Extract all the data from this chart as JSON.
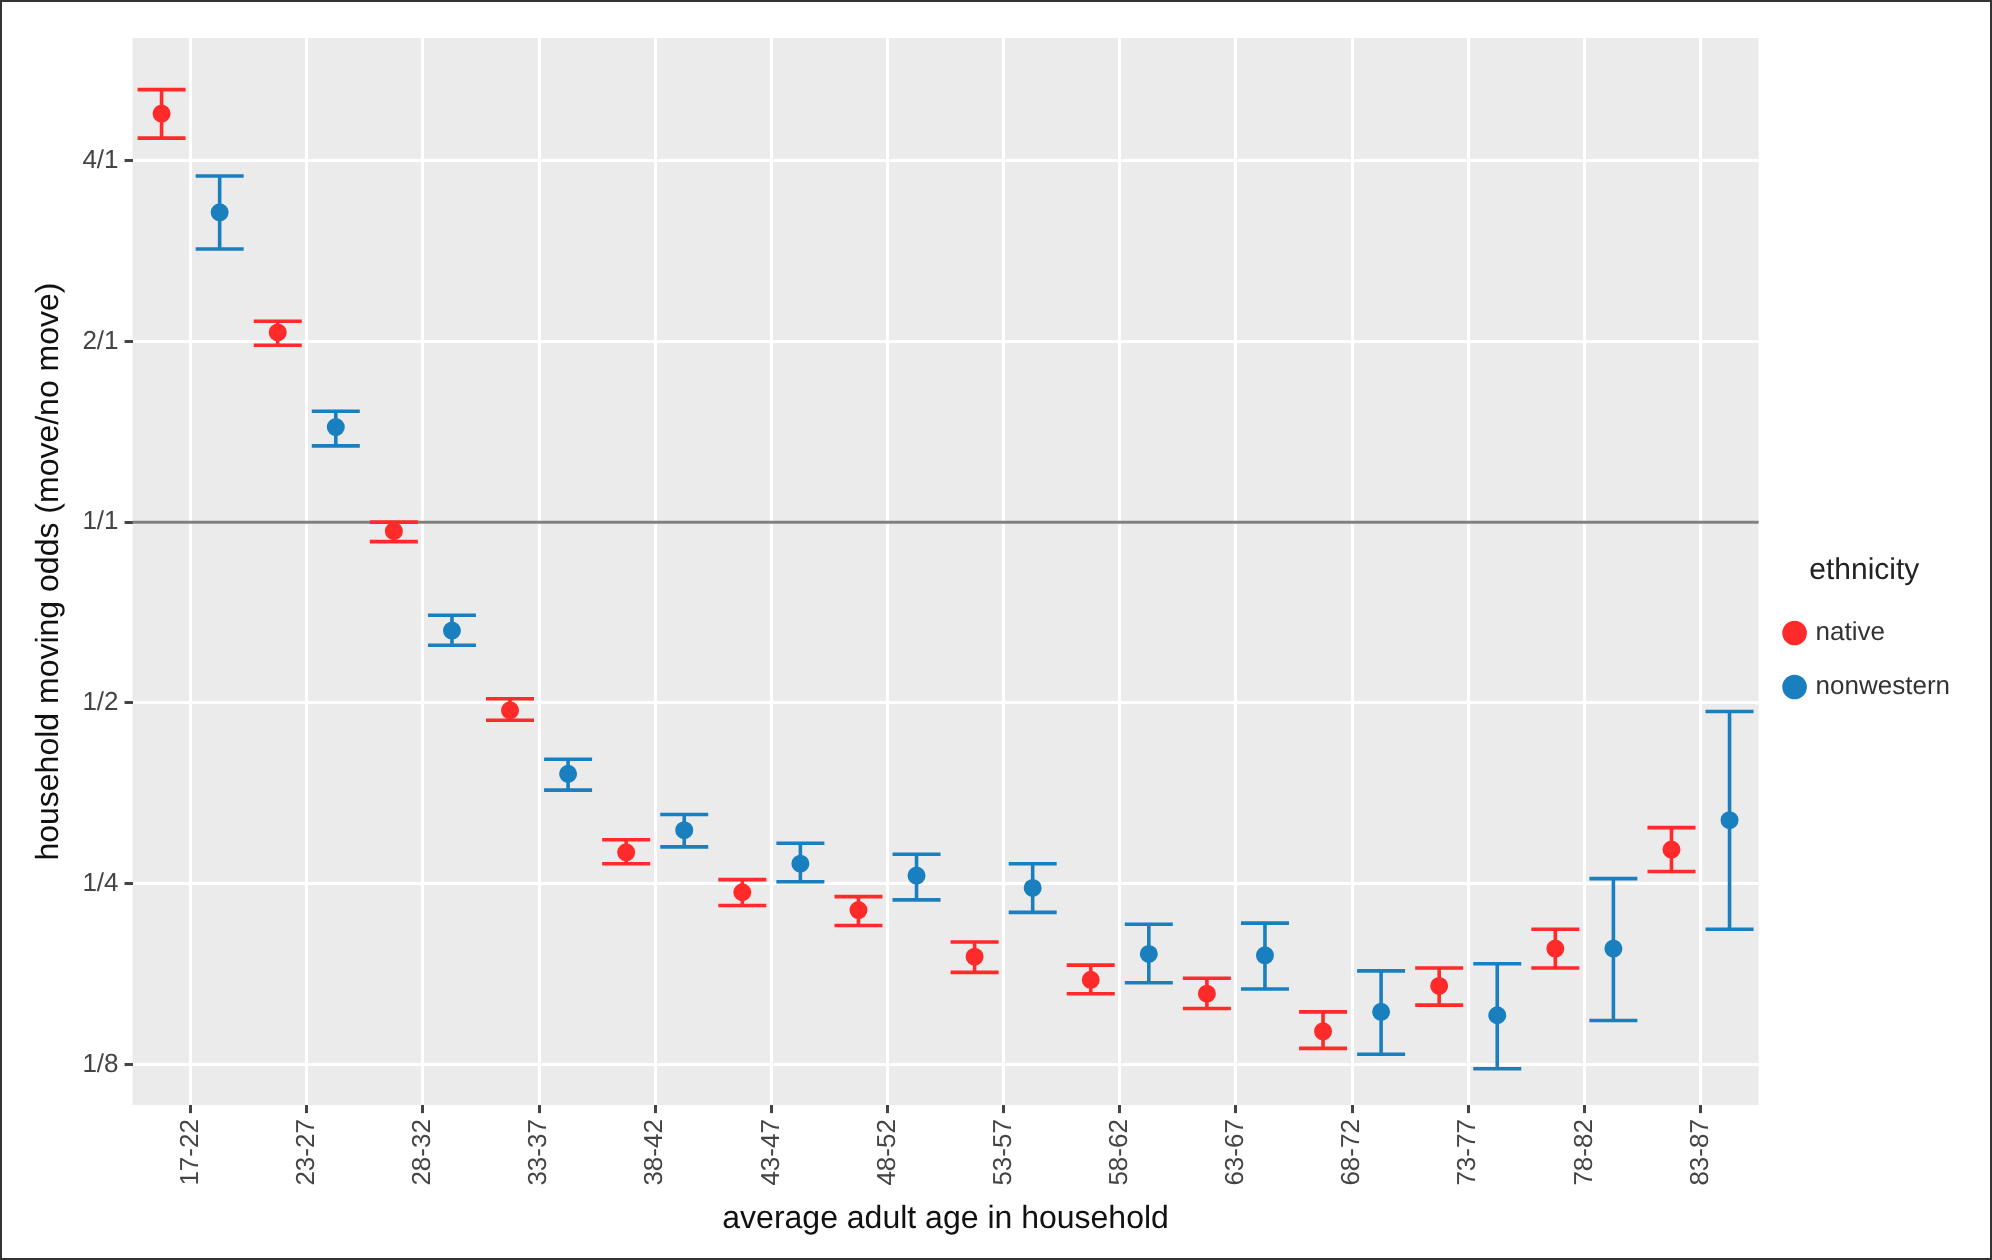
{
  "chart_data": {
    "type": "scatter",
    "xlabel": "average adult age in household",
    "ylabel": "household moving odds (move/no move)",
    "legend_title": "ethnicity",
    "categories": [
      "17-22",
      "23-27",
      "28-32",
      "33-37",
      "38-42",
      "43-47",
      "48-52",
      "53-57",
      "58-62",
      "63-67",
      "68-72",
      "73-77",
      "78-82",
      "83-87"
    ],
    "series": [
      {
        "name": "native",
        "color": "#ff2a2a",
        "values": [
          4.79,
          2.07,
          0.966,
          0.486,
          0.282,
          0.242,
          0.226,
          0.189,
          0.173,
          0.164,
          0.142,
          0.169,
          0.195,
          0.285
        ],
        "errors": [
          [
            4.36,
            5.25
          ],
          [
            1.97,
            2.16
          ],
          [
            0.928,
            1.0
          ],
          [
            0.468,
            0.508
          ],
          [
            0.27,
            0.296
          ],
          [
            0.23,
            0.254
          ],
          [
            0.213,
            0.238
          ],
          [
            0.178,
            0.2
          ],
          [
            0.164,
            0.183
          ],
          [
            0.155,
            0.174
          ],
          [
            0.133,
            0.153
          ],
          [
            0.157,
            0.181
          ],
          [
            0.181,
            0.21
          ],
          [
            0.262,
            0.31
          ]
        ]
      },
      {
        "name": "nonwestern",
        "color": "#1a7fbf",
        "values": [
          3.28,
          1.44,
          0.66,
          0.381,
          0.307,
          0.27,
          0.258,
          0.246,
          0.191,
          0.19,
          0.153,
          0.151,
          0.195,
          0.319
        ],
        "errors": [
          [
            2.85,
            3.77
          ],
          [
            1.34,
            1.53
          ],
          [
            0.624,
            0.7
          ],
          [
            0.358,
            0.403
          ],
          [
            0.288,
            0.326
          ],
          [
            0.252,
            0.292
          ],
          [
            0.235,
            0.28
          ],
          [
            0.224,
            0.27
          ],
          [
            0.171,
            0.214
          ],
          [
            0.167,
            0.215
          ],
          [
            0.13,
            0.179
          ],
          [
            0.123,
            0.184
          ],
          [
            0.148,
            0.255
          ],
          [
            0.21,
            0.484
          ]
        ]
      }
    ],
    "ylim": [
      0.107,
      6.4
    ],
    "yticks": [
      {
        "value": 0.125,
        "label": "1/8"
      },
      {
        "value": 0.25,
        "label": "1/4"
      },
      {
        "value": 0.5,
        "label": "1/2"
      },
      {
        "value": 1,
        "label": "1/1"
      },
      {
        "value": 2,
        "label": "2/1"
      },
      {
        "value": 4,
        "label": "4/1"
      }
    ],
    "log": "y",
    "grid": true,
    "legend": "right",
    "marker": "circle",
    "ref_lines": [
      {
        "axis": "y",
        "value": 1,
        "color": "#7f7f7f"
      }
    ]
  }
}
